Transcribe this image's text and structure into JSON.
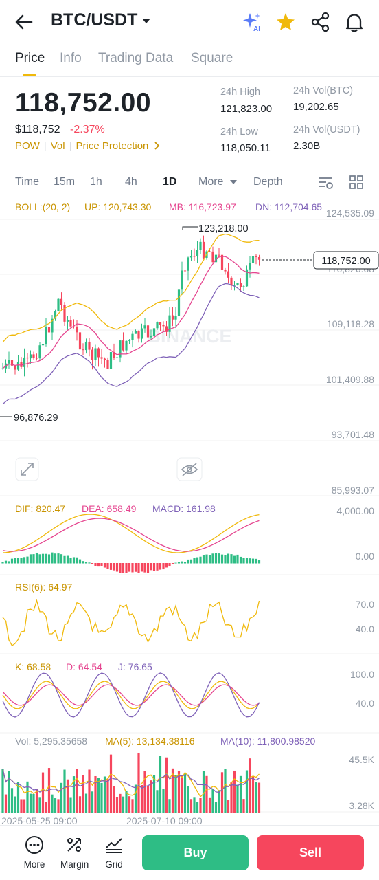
{
  "header": {
    "pair": "BTC/USDT",
    "icons": [
      "back-arrow-icon",
      "chevron-down-icon",
      "ai-sparkle-icon",
      "star-icon",
      "share-icon",
      "bell-icon"
    ],
    "ai_badge": "AI",
    "star_color": "#f0b90b"
  },
  "tabs": [
    {
      "label": "Price",
      "active": true
    },
    {
      "label": "Info"
    },
    {
      "label": "Trading Data"
    },
    {
      "label": "Square"
    }
  ],
  "summary": {
    "last_price": "118,752.00",
    "usd_price": "$118,752",
    "change_pct": "-2.37%",
    "tags": [
      "POW",
      "Vol",
      "Price Protection"
    ],
    "high_label": "24h High",
    "high_value": "121,823.00",
    "low_label": "24h Low",
    "low_value": "118,050.11",
    "vol_btc_label": "24h Vol(BTC)",
    "vol_btc_value": "19,202.65",
    "vol_usdt_label": "24h Vol(USDT)",
    "vol_usdt_value": "2.30B"
  },
  "timeframes": {
    "items": [
      "Time",
      "15m",
      "1h",
      "4h",
      "1D",
      "More",
      "Depth"
    ],
    "active": "1D",
    "icons": [
      "indicator-settings-icon",
      "grid-layout-icon"
    ]
  },
  "chart": {
    "watermark": "BINANCE",
    "boll": {
      "label": "BOLL:(20, 2)",
      "up": "UP: 120,743.30",
      "mb": "MB: 116,723.97",
      "dn": "DN: 112,704.65"
    },
    "price_axis": [
      "124,535.09",
      "116,826.68",
      "109,118.28",
      "101,409.88",
      "93,701.48",
      "85,993.07"
    ],
    "high_marker": "123,218.00",
    "low_marker": "96,876.29",
    "current_price_tag": "118,752.00",
    "macd": {
      "dif": "DIF: 820.47",
      "dea": "DEA: 658.49",
      "macd": "MACD: 161.98",
      "axis": [
        "4,000.00",
        "0.00"
      ]
    },
    "rsi": {
      "label": "RSI(6): 64.97",
      "axis": [
        "70.0",
        "40.0"
      ]
    },
    "kdj": {
      "k": "K: 68.58",
      "d": "D: 64.54",
      "j": "J: 76.65",
      "axis": [
        "100.0",
        "40.0"
      ]
    },
    "volume": {
      "vol": "Vol: 5,295.35658",
      "ma5": "MA(5): 13,134.38116",
      "ma10": "MA(10): 11,800.98520",
      "axis": [
        "45.5K",
        "3.28K"
      ]
    },
    "dates": [
      "2025-05-25 09:00",
      "2025-07-10 09:00"
    ],
    "colors": {
      "up": "#2ebd85",
      "down": "#f6465d",
      "boll_up": "#f0b90b",
      "boll_mb": "#e5458f",
      "boll_dn": "#7f62b8"
    }
  },
  "bottom_bar": {
    "items": [
      {
        "label": "More",
        "icon": "more-dots-icon"
      },
      {
        "label": "Margin",
        "icon": "margin-icon"
      },
      {
        "label": "Grid",
        "icon": "grid-trading-icon"
      }
    ],
    "buy_label": "Buy",
    "sell_label": "Sell"
  }
}
